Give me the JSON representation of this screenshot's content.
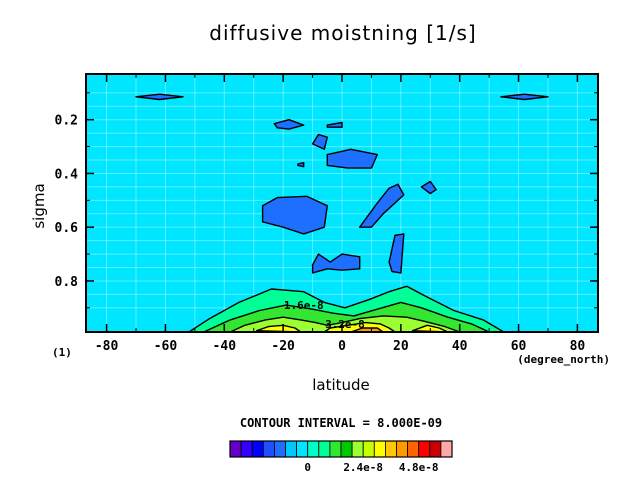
{
  "chart_data": {
    "type": "contour",
    "title": "diffusive moistning [1/s]",
    "xlabel": "latitude",
    "ylabel": "sigma",
    "x_unit_label": "(degree_north)",
    "y_unit_label": "(1)",
    "xlim": [
      -87,
      87
    ],
    "ylim": [
      0.99,
      0.03
    ],
    "x_ticks": [
      -80,
      -60,
      -40,
      -20,
      0,
      20,
      40,
      60,
      80
    ],
    "y_ticks": [
      0.2,
      0.4,
      0.6,
      0.8
    ],
    "contour_interval_label": "CONTOUR INTERVAL = 8.000E-09",
    "contour_labels": [
      {
        "text": "1.6e-8",
        "lat": -13,
        "sigma": 0.905
      },
      {
        "text": "3.2e-8",
        "lat": 1,
        "sigma": 0.975
      }
    ],
    "background_level_color": "#00e6ff",
    "negative_regions": [
      {
        "color": "#1e6eff",
        "points": [
          [
            -70,
            0.115
          ],
          [
            -62,
            0.105
          ],
          [
            -54,
            0.115
          ],
          [
            -62,
            0.125
          ]
        ]
      },
      {
        "color": "#1e6eff",
        "points": [
          [
            54,
            0.115
          ],
          [
            62,
            0.105
          ],
          [
            70,
            0.115
          ],
          [
            62,
            0.125
          ]
        ]
      },
      {
        "color": "#1e6eff",
        "points": [
          [
            -23,
            0.215
          ],
          [
            -18,
            0.2
          ],
          [
            -13,
            0.22
          ],
          [
            -18,
            0.235
          ],
          [
            -22,
            0.23
          ]
        ]
      },
      {
        "color": "#1e6eff",
        "points": [
          [
            -5,
            0.22
          ],
          [
            0,
            0.21
          ],
          [
            0,
            0.228
          ],
          [
            -5,
            0.228
          ]
        ]
      },
      {
        "color": "#1e6eff",
        "points": [
          [
            -10,
            0.29
          ],
          [
            -8,
            0.255
          ],
          [
            -5,
            0.265
          ],
          [
            -6,
            0.31
          ]
        ]
      },
      {
        "color": "#1e6eff",
        "points": [
          [
            -15,
            0.365
          ],
          [
            -13,
            0.36
          ],
          [
            -13,
            0.375
          ],
          [
            -15,
            0.37
          ]
        ]
      },
      {
        "color": "#1e6eff",
        "points": [
          [
            -5,
            0.33
          ],
          [
            3,
            0.31
          ],
          [
            12,
            0.33
          ],
          [
            10,
            0.38
          ],
          [
            2,
            0.38
          ],
          [
            -5,
            0.37
          ]
        ]
      },
      {
        "color": "#1e6eff",
        "points": [
          [
            -27,
            0.52
          ],
          [
            -22,
            0.49
          ],
          [
            -12,
            0.485
          ],
          [
            -5,
            0.52
          ],
          [
            -6,
            0.6
          ],
          [
            -13,
            0.625
          ],
          [
            -20,
            0.6
          ],
          [
            -27,
            0.58
          ]
        ]
      },
      {
        "color": "#1e6eff",
        "points": [
          [
            6,
            0.6
          ],
          [
            12,
            0.51
          ],
          [
            16,
            0.455
          ],
          [
            19,
            0.44
          ],
          [
            21,
            0.48
          ],
          [
            14,
            0.55
          ],
          [
            10,
            0.6
          ]
        ]
      },
      {
        "color": "#1e6eff",
        "points": [
          [
            27,
            0.45
          ],
          [
            30,
            0.43
          ],
          [
            32,
            0.46
          ],
          [
            30,
            0.475
          ]
        ]
      },
      {
        "color": "#1e6eff",
        "points": [
          [
            16,
            0.73
          ],
          [
            18,
            0.63
          ],
          [
            21,
            0.625
          ],
          [
            20,
            0.77
          ],
          [
            17,
            0.765
          ]
        ]
      },
      {
        "color": "#1e6eff",
        "points": [
          [
            -10,
            0.74
          ],
          [
            -8,
            0.7
          ],
          [
            -4,
            0.73
          ],
          [
            0,
            0.7
          ],
          [
            6,
            0.71
          ],
          [
            6,
            0.755
          ],
          [
            0,
            0.76
          ],
          [
            -5,
            0.755
          ],
          [
            -10,
            0.77
          ]
        ]
      }
    ],
    "positive_regions": [
      {
        "color": "#00ff96",
        "points": [
          [
            -52,
            0.99
          ],
          [
            -45,
            0.94
          ],
          [
            -35,
            0.88
          ],
          [
            -24,
            0.83
          ],
          [
            -13,
            0.84
          ],
          [
            -6,
            0.88
          ],
          [
            1,
            0.9
          ],
          [
            9,
            0.87
          ],
          [
            16,
            0.84
          ],
          [
            22,
            0.82
          ],
          [
            29,
            0.86
          ],
          [
            38,
            0.91
          ],
          [
            48,
            0.945
          ],
          [
            55,
            0.99
          ]
        ]
      },
      {
        "color": "#32e632",
        "points": [
          [
            -47,
            0.99
          ],
          [
            -38,
            0.945
          ],
          [
            -28,
            0.91
          ],
          [
            -19,
            0.89
          ],
          [
            -10,
            0.905
          ],
          [
            -3,
            0.92
          ],
          [
            4,
            0.93
          ],
          [
            12,
            0.905
          ],
          [
            20,
            0.88
          ],
          [
            27,
            0.9
          ],
          [
            36,
            0.935
          ],
          [
            44,
            0.96
          ],
          [
            50,
            0.99
          ]
        ]
      },
      {
        "color": "#9bff32",
        "points": [
          [
            -38,
            0.99
          ],
          [
            -33,
            0.965
          ],
          [
            -26,
            0.945
          ],
          [
            -20,
            0.935
          ],
          [
            -14,
            0.945
          ],
          [
            -9,
            0.955
          ],
          [
            -5,
            0.965
          ],
          [
            0,
            0.955
          ],
          [
            6,
            0.94
          ],
          [
            14,
            0.93
          ],
          [
            22,
            0.935
          ],
          [
            28,
            0.95
          ],
          [
            35,
            0.97
          ],
          [
            40,
            0.99
          ]
        ]
      },
      {
        "color": "#ffff00",
        "points": [
          [
            -29,
            0.985
          ],
          [
            -25,
            0.97
          ],
          [
            -20,
            0.965
          ],
          [
            -16,
            0.975
          ],
          [
            -14,
            0.99
          ]
        ]
      },
      {
        "color": "#ffff00",
        "points": [
          [
            -6,
            0.99
          ],
          [
            -4,
            0.975
          ],
          [
            2,
            0.965
          ],
          [
            8,
            0.955
          ],
          [
            13,
            0.96
          ],
          [
            16,
            0.975
          ],
          [
            18,
            0.99
          ]
        ]
      },
      {
        "color": "#ffff00",
        "points": [
          [
            24,
            0.985
          ],
          [
            29,
            0.965
          ],
          [
            33,
            0.975
          ],
          [
            36,
            0.99
          ]
        ]
      },
      {
        "color": "#ff9b00",
        "points": [
          [
            3,
            0.99
          ],
          [
            7,
            0.975
          ],
          [
            12,
            0.975
          ],
          [
            14,
            0.99
          ]
        ]
      }
    ],
    "colorbar": {
      "colors": [
        "#6400c8",
        "#3200ff",
        "#0000ff",
        "#1e50ff",
        "#1e6eff",
        "#00c8ff",
        "#00e6ff",
        "#00ffc8",
        "#00ff96",
        "#32e632",
        "#00c800",
        "#9bff32",
        "#c8ff00",
        "#ffff00",
        "#ffc800",
        "#ff9b00",
        "#ff6400",
        "#ff0000",
        "#c80000",
        "#ffaaaa"
      ],
      "tick_labels": [
        "0",
        "2.4e-8",
        "4.8e-8"
      ],
      "tick_indices": [
        7,
        12,
        17
      ]
    }
  }
}
